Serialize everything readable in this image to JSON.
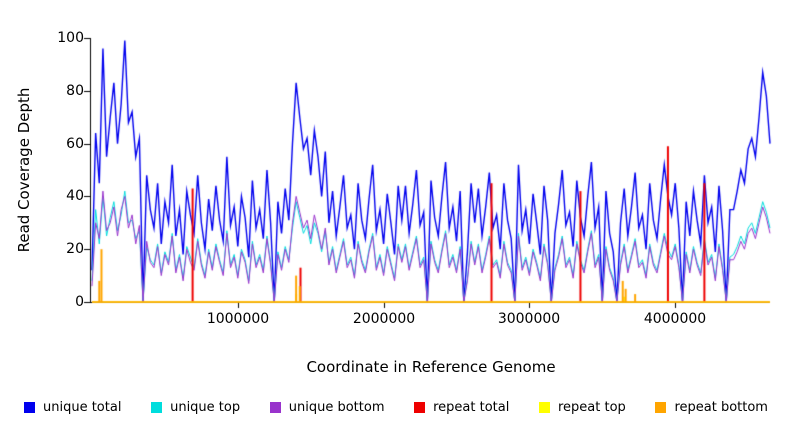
{
  "chart_data": {
    "type": "line",
    "title": "",
    "xlabel": "Coordinate in Reference Genome",
    "ylabel": "Read Coverage Depth",
    "xlim": [
      0,
      4650000
    ],
    "ylim": [
      0,
      100
    ],
    "grid": false,
    "legend_position": "bottom",
    "yticks": [
      0,
      20,
      40,
      60,
      80,
      100
    ],
    "xticks": [
      1000000,
      2000000,
      3000000,
      4000000
    ],
    "x_start": 0,
    "x_step": 25000,
    "series": [
      {
        "name": "unique total",
        "color": "#0000EE",
        "type": "line",
        "values": [
          12,
          64,
          45,
          96,
          55,
          70,
          83,
          60,
          75,
          99,
          68,
          72,
          55,
          62,
          0,
          48,
          35,
          28,
          45,
          22,
          38,
          30,
          52,
          25,
          35,
          18,
          42,
          33,
          26,
          48,
          30,
          20,
          39,
          27,
          44,
          31,
          23,
          55,
          29,
          36,
          21,
          40,
          32,
          17,
          46,
          28,
          35,
          24,
          50,
          30,
          0,
          38,
          26,
          43,
          31,
          60,
          83,
          70,
          58,
          62,
          48,
          65,
          55,
          40,
          57,
          30,
          42,
          25,
          36,
          48,
          28,
          33,
          20,
          45,
          31,
          24,
          39,
          52,
          27,
          35,
          22,
          41,
          30,
          18,
          44,
          31,
          44,
          26,
          37,
          50,
          29,
          34,
          0,
          46,
          32,
          25,
          40,
          53,
          28,
          36,
          23,
          42,
          0,
          19,
          45,
          30,
          43,
          25,
          36,
          49,
          28,
          33,
          20,
          45,
          31,
          24,
          0,
          52,
          27,
          35,
          22,
          41,
          30,
          18,
          44,
          31,
          0,
          26,
          37,
          50,
          29,
          34,
          21,
          46,
          32,
          25,
          40,
          53,
          28,
          36,
          0,
          42,
          26,
          19,
          0,
          30,
          43,
          25,
          36,
          49,
          28,
          33,
          20,
          45,
          31,
          24,
          39,
          52,
          40,
          33,
          45,
          28,
          0,
          38,
          25,
          42,
          31,
          22,
          48,
          30,
          36,
          19,
          44,
          27,
          0,
          35,
          35,
          42,
          50,
          45,
          58,
          62,
          55,
          70,
          87,
          78,
          60
        ]
      },
      {
        "name": "unique top",
        "color": "#00DDDD",
        "type": "line",
        "values": [
          8,
          35,
          22,
          40,
          25,
          32,
          38,
          27,
          33,
          42,
          30,
          31,
          24,
          27,
          0,
          21,
          16,
          14,
          22,
          11,
          19,
          15,
          26,
          12,
          18,
          9,
          21,
          17,
          13,
          24,
          15,
          10,
          20,
          13,
          22,
          16,
          11,
          27,
          14,
          18,
          10,
          20,
          16,
          8,
          23,
          14,
          18,
          12,
          25,
          15,
          0,
          19,
          13,
          21,
          16,
          28,
          38,
          32,
          26,
          29,
          22,
          30,
          26,
          19,
          27,
          15,
          21,
          12,
          18,
          24,
          14,
          17,
          10,
          23,
          16,
          12,
          20,
          26,
          13,
          18,
          11,
          21,
          15,
          9,
          22,
          16,
          22,
          13,
          19,
          25,
          14,
          17,
          0,
          23,
          16,
          12,
          20,
          27,
          14,
          18,
          12,
          21,
          0,
          9,
          23,
          15,
          22,
          12,
          18,
          25,
          14,
          16,
          10,
          23,
          15,
          12,
          0,
          26,
          13,
          17,
          11,
          20,
          15,
          9,
          22,
          15,
          0,
          13,
          18,
          25,
          14,
          17,
          10,
          23,
          16,
          12,
          20,
          27,
          14,
          18,
          0,
          21,
          13,
          9,
          0,
          15,
          22,
          12,
          18,
          24,
          14,
          16,
          10,
          22,
          15,
          12,
          19,
          26,
          20,
          17,
          22,
          14,
          0,
          19,
          12,
          21,
          15,
          11,
          24,
          15,
          18,
          9,
          22,
          13,
          0,
          17,
          18,
          21,
          25,
          22,
          28,
          30,
          26,
          32,
          38,
          34,
          28
        ]
      },
      {
        "name": "unique bottom",
        "color": "#9933CC",
        "type": "line",
        "values": [
          6,
          30,
          24,
          42,
          27,
          30,
          36,
          25,
          35,
          40,
          28,
          33,
          22,
          29,
          0,
          23,
          15,
          13,
          21,
          10,
          18,
          14,
          25,
          11,
          17,
          8,
          20,
          15,
          12,
          23,
          14,
          9,
          19,
          12,
          21,
          15,
          10,
          26,
          13,
          17,
          9,
          19,
          15,
          7,
          22,
          13,
          17,
          11,
          24,
          14,
          0,
          18,
          12,
          20,
          15,
          30,
          40,
          34,
          28,
          31,
          24,
          33,
          27,
          20,
          28,
          14,
          20,
          11,
          17,
          23,
          13,
          16,
          9,
          22,
          15,
          11,
          19,
          25,
          12,
          17,
          10,
          20,
          14,
          8,
          21,
          15,
          21,
          12,
          18,
          24,
          13,
          16,
          0,
          22,
          15,
          11,
          19,
          26,
          13,
          17,
          11,
          20,
          0,
          8,
          22,
          14,
          21,
          11,
          17,
          24,
          13,
          15,
          9,
          22,
          14,
          11,
          0,
          25,
          12,
          16,
          10,
          19,
          14,
          8,
          21,
          14,
          0,
          12,
          17,
          24,
          13,
          16,
          9,
          22,
          15,
          11,
          19,
          26,
          13,
          17,
          0,
          20,
          12,
          8,
          0,
          14,
          21,
          11,
          17,
          23,
          13,
          15,
          9,
          21,
          14,
          11,
          18,
          25,
          18,
          16,
          21,
          13,
          0,
          18,
          11,
          20,
          14,
          10,
          23,
          14,
          17,
          8,
          21,
          12,
          0,
          16,
          16,
          19,
          23,
          20,
          26,
          28,
          24,
          30,
          36,
          32,
          26
        ]
      },
      {
        "name": "repeat total",
        "color": "#EE0000",
        "type": "spikes",
        "baseline": false,
        "points": [
          [
            690000,
            43
          ],
          [
            1430000,
            13
          ],
          [
            2740000,
            45
          ],
          [
            3350000,
            42
          ],
          [
            3950000,
            59
          ],
          [
            4200000,
            45
          ]
        ]
      },
      {
        "name": "repeat top",
        "color": "#FFFF00",
        "type": "spikes",
        "baseline": true,
        "points": [
          [
            1400000,
            3
          ],
          [
            3650000,
            2
          ]
        ]
      },
      {
        "name": "repeat bottom",
        "color": "#FFA500",
        "type": "spikes",
        "baseline": true,
        "points": [
          [
            50000,
            8
          ],
          [
            65000,
            20
          ],
          [
            1400000,
            10
          ],
          [
            1425000,
            6
          ],
          [
            3640000,
            8
          ],
          [
            3660000,
            5
          ],
          [
            3725000,
            3
          ]
        ]
      }
    ]
  }
}
